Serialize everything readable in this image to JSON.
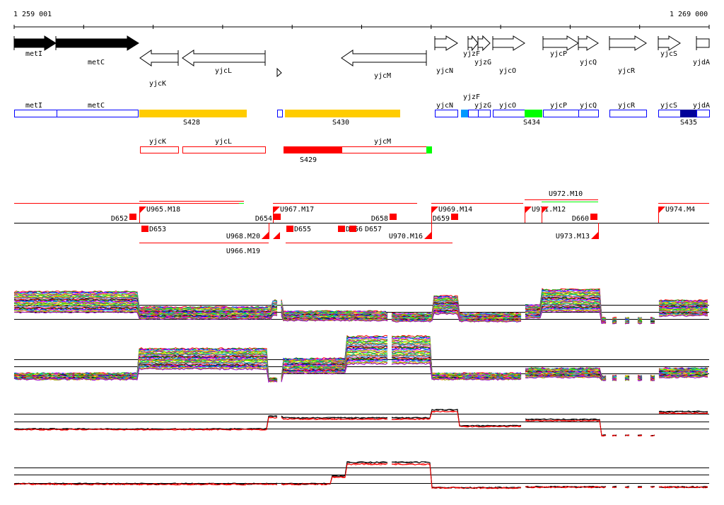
{
  "scale": {
    "start_label": "1 259 001",
    "end_label": "1 269 000"
  },
  "genes": [
    "metI",
    "metC",
    "yjcK",
    "yjcL",
    "yjcM",
    "yjcN",
    "yjzF",
    "yjzG",
    "yjcO",
    "yjcP",
    "yjcQ",
    "yjcR",
    "yjcS",
    "yjdA"
  ],
  "segments": [
    "S428",
    "S430",
    "S434",
    "S435",
    "S429"
  ],
  "operon_row1": [
    "metI",
    "metC",
    "yjcN",
    "yjzF",
    "yjzG",
    "yjcO",
    "yjcP",
    "yjcQ",
    "yjcR",
    "yjcS",
    "yjdA"
  ],
  "operon_row2": [
    "yjcK",
    "yjcL",
    "yjcM"
  ],
  "transcripts_up": [
    "U965.M18",
    "U967.M17",
    "U969.M14",
    "U971.M12",
    "U972.M10",
    "U974.M4"
  ],
  "transcripts_down": [
    "U966.M19",
    "U968.M20",
    "U970.M16",
    "U973.M13"
  ],
  "downshifts": [
    "D652",
    "D653",
    "D654",
    "D655",
    "D656",
    "D657",
    "D658",
    "D659",
    "D660"
  ],
  "colors": {
    "gene_box": "#0000ff",
    "segment_gold": "#ffcc00",
    "segment_red": "#ff0000",
    "segment_green": "#00ff00",
    "segment_cyan": "#0099ff",
    "segment_navy": "#000099",
    "transcript": "#ff0000"
  }
}
